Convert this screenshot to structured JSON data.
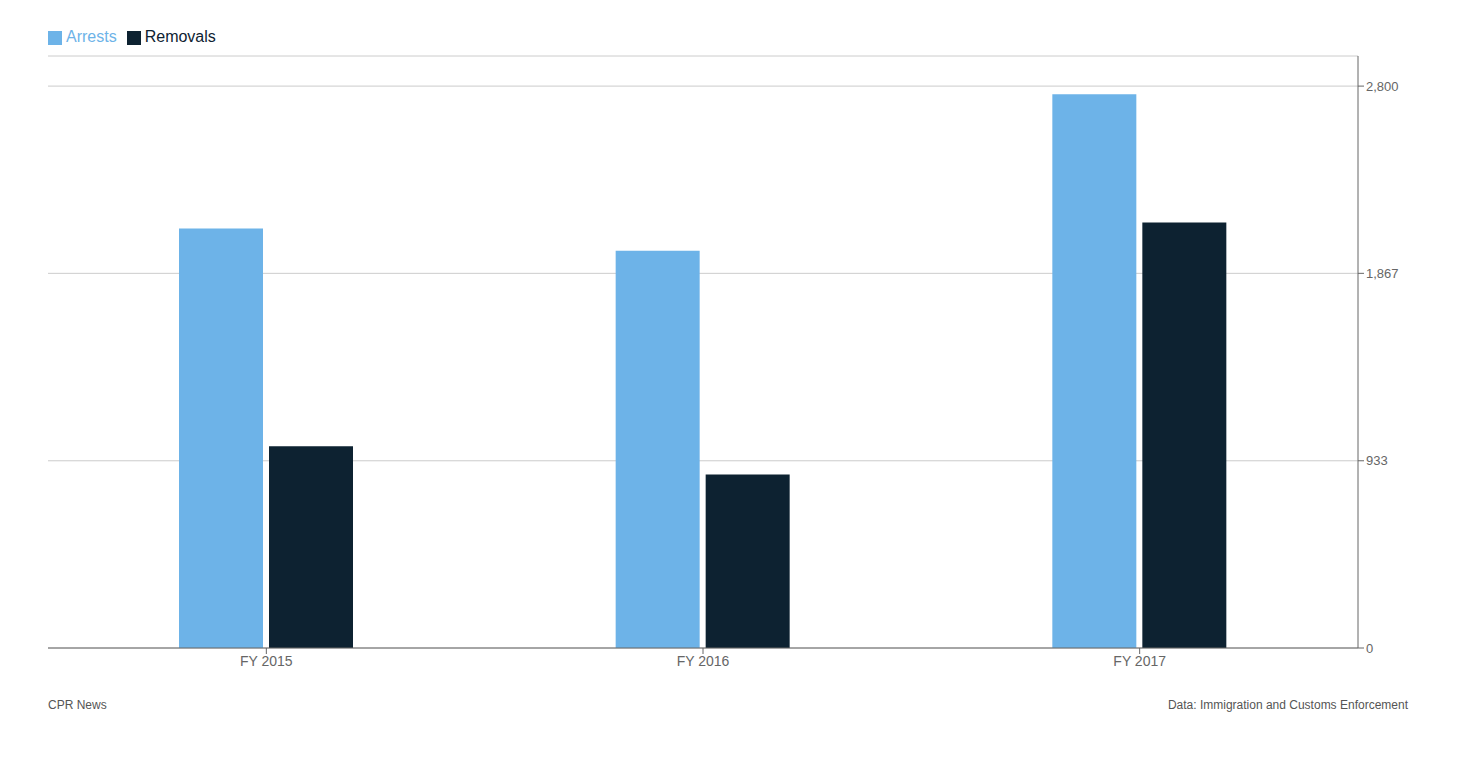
{
  "chart_data": {
    "type": "bar",
    "categories": [
      "FY 2015",
      "FY 2016",
      "FY 2017"
    ],
    "series": [
      {
        "name": "Arrests",
        "color": "#6DB3E8",
        "values": [
          2090,
          1980,
          2760
        ]
      },
      {
        "name": "Removals",
        "color": "#0D2231",
        "values": [
          1005,
          865,
          2120
        ]
      }
    ],
    "ylim": [
      0,
      2950
    ],
    "yticks": [
      0,
      933,
      {
        "value": 1867,
        "label": "1,867"
      },
      {
        "value": 2800,
        "label": "2,800"
      }
    ],
    "grid": true,
    "legend": "upper left",
    "annotations": [
      "CPR News",
      "Data: Immigration and Customs Enforcement"
    ]
  }
}
